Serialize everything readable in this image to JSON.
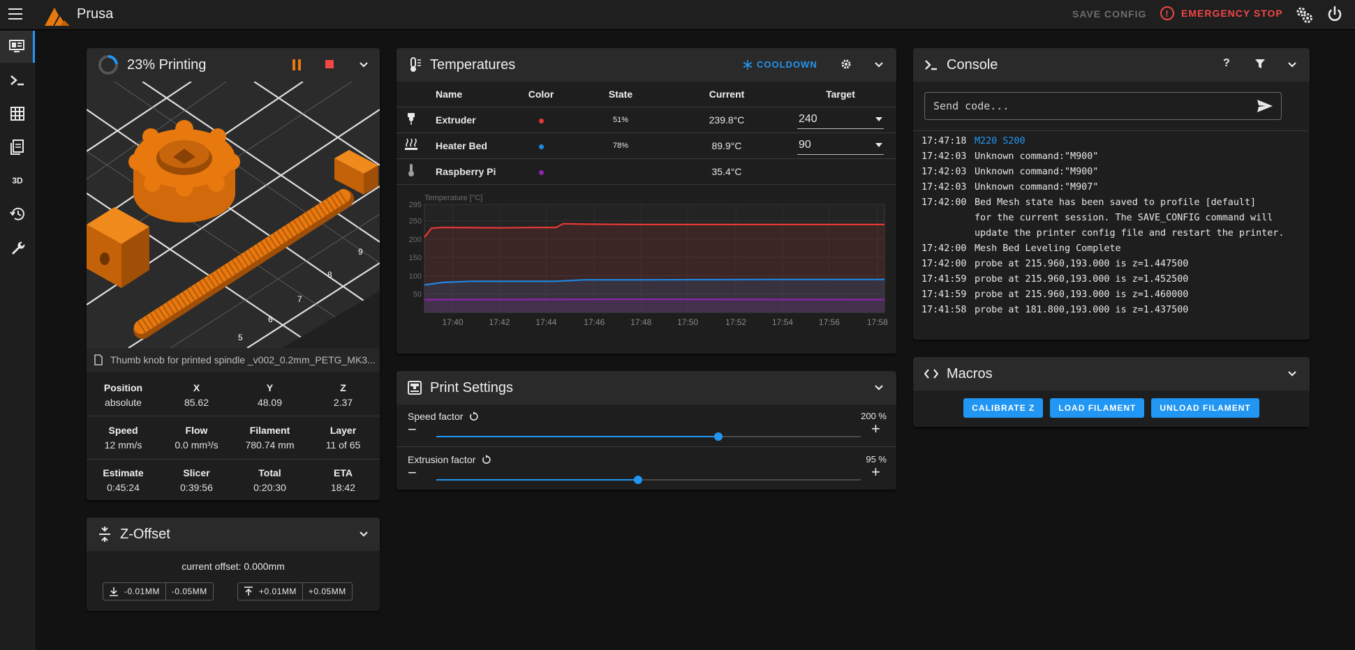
{
  "app": {
    "title": "Prusa",
    "save_config": "SAVE CONFIG",
    "emergency_stop": "EMERGENCY STOP"
  },
  "status": {
    "title": "23% Printing",
    "progress": 0.23,
    "filename": "Thumb knob for printed spindle _v002_0.2mm_PETG_MK3...",
    "row1": {
      "labels": [
        "Position",
        "X",
        "Y",
        "Z"
      ],
      "values": [
        "absolute",
        "85.62",
        "48.09",
        "2.37"
      ]
    },
    "row2": {
      "labels": [
        "Speed",
        "Flow",
        "Filament",
        "Layer"
      ],
      "values": [
        "12 mm/s",
        "0.0 mm³/s",
        "780.74 mm",
        "11 of 65"
      ]
    },
    "row3": {
      "labels": [
        "Estimate",
        "Slicer",
        "Total",
        "ETA"
      ],
      "values": [
        "0:45:24",
        "0:39:56",
        "0:20:30",
        "18:42"
      ]
    },
    "thumb_labels": [
      "5",
      "6",
      "7",
      "8",
      "9"
    ]
  },
  "zoffset": {
    "title": "Z-Offset",
    "current": "current offset: 0.000mm",
    "down_small": "-0.01MM",
    "down_large": "-0.05MM",
    "up_small": "+0.01MM",
    "up_large": "+0.05MM"
  },
  "temps": {
    "title": "Temperatures",
    "cooldown": "COOLDOWN",
    "headers": {
      "name": "Name",
      "color": "Color",
      "state": "State",
      "current": "Current",
      "target": "Target"
    },
    "rows": [
      {
        "name": "Extruder",
        "color": "#e53935",
        "state": "51%",
        "current": "239.8°C",
        "target": "240"
      },
      {
        "name": "Heater Bed",
        "color": "#1e88e5",
        "state": "78%",
        "current": "89.9°C",
        "target": "90"
      },
      {
        "name": "Raspberry Pi",
        "color": "#8e24aa",
        "state": "",
        "current": "35.4°C",
        "target": ""
      }
    ]
  },
  "chart_data": {
    "type": "line",
    "ylabel": "Temperature [°C]",
    "ylim": [
      0,
      295
    ],
    "yticks": [
      "295",
      "250",
      "200",
      "150",
      "100",
      "50"
    ],
    "ytick_values": [
      295,
      250,
      200,
      150,
      100,
      50
    ],
    "xticks": [
      "17:40",
      "17:42",
      "17:44",
      "17:46",
      "17:48",
      "17:50",
      "17:52",
      "17:54",
      "17:56",
      "17:58"
    ],
    "xtick_values": [
      17.667,
      17.7,
      17.733,
      17.767,
      17.8,
      17.833,
      17.867,
      17.9,
      17.933,
      17.967
    ],
    "xlim": [
      17.647,
      17.972
    ],
    "series": [
      {
        "name": "Extruder",
        "color": "#e53935",
        "x": [
          17.647,
          17.652,
          17.66,
          17.7,
          17.73,
          17.74,
          17.745,
          17.76,
          17.8,
          17.9,
          17.972
        ],
        "values": [
          205,
          230,
          232,
          231,
          232,
          232,
          242,
          241,
          240,
          240,
          240
        ]
      },
      {
        "name": "Heater Bed",
        "color": "#1e88e5",
        "x": [
          17.647,
          17.66,
          17.68,
          17.7,
          17.74,
          17.76,
          17.8,
          17.9,
          17.972
        ],
        "values": [
          75,
          82,
          85,
          85,
          85,
          89,
          89,
          90,
          90
        ]
      },
      {
        "name": "Raspberry Pi",
        "color": "#8e24aa",
        "x": [
          17.647,
          17.8,
          17.972
        ],
        "values": [
          35,
          36,
          35
        ]
      }
    ]
  },
  "print_settings": {
    "title": "Print Settings",
    "speed": {
      "label": "Speed factor",
      "value": "200 %",
      "fraction": 0.665
    },
    "extrusion": {
      "label": "Extrusion factor",
      "value": "95 %",
      "fraction": 0.475
    }
  },
  "console": {
    "title": "Console",
    "help": "?",
    "placeholder": "Send code...",
    "lines": [
      {
        "time": "17:47:18",
        "msg": "M220 S200",
        "color": "#2196f3"
      },
      {
        "time": "17:42:03",
        "msg": "Unknown command:\"M900\"",
        "color": ""
      },
      {
        "time": "17:42:03",
        "msg": "Unknown command:\"M900\"",
        "color": ""
      },
      {
        "time": "17:42:03",
        "msg": "Unknown command:\"M907\"",
        "color": ""
      },
      {
        "time": "17:42:00",
        "msg": "Bed Mesh state has been saved to profile [default]\nfor the current session. The SAVE_CONFIG command will\nupdate the printer config file and restart the printer.",
        "color": ""
      },
      {
        "time": "17:42:00",
        "msg": "Mesh Bed Leveling Complete",
        "color": ""
      },
      {
        "time": "17:42:00",
        "msg": "probe at 215.960,193.000 is z=1.447500",
        "color": ""
      },
      {
        "time": "17:41:59",
        "msg": "probe at 215.960,193.000 is z=1.452500",
        "color": ""
      },
      {
        "time": "17:41:59",
        "msg": "probe at 215.960,193.000 is z=1.460000",
        "color": ""
      },
      {
        "time": "17:41:58",
        "msg": "probe at 181.800,193.000 is z=1.437500",
        "color": ""
      }
    ]
  },
  "macros": {
    "title": "Macros",
    "buttons": [
      "CALIBRATE Z",
      "LOAD FILAMENT",
      "UNLOAD FILAMENT"
    ]
  },
  "colors": {
    "accent": "#2196f3",
    "danger": "#f24747",
    "print_orange": "#e8790f"
  }
}
